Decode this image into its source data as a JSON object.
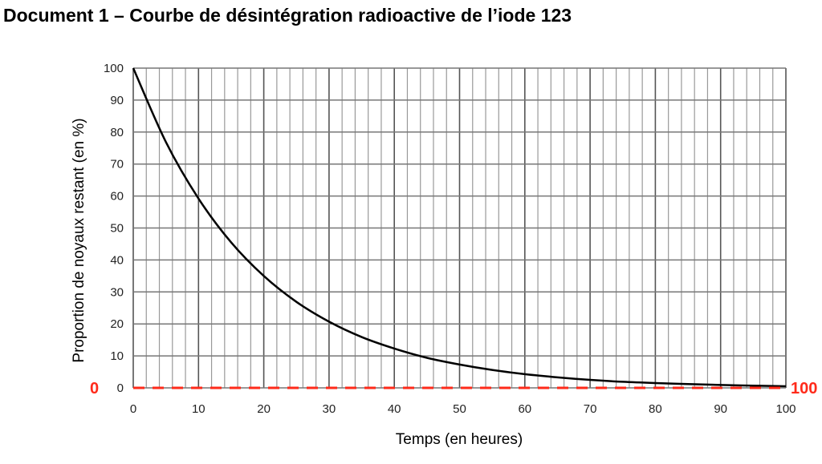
{
  "title": "Document 1 – Courbe de désintégration radioactive de l’iode 123",
  "chart_data": {
    "type": "line",
    "title": "Document 1 – Courbe de désintégration radioactive de l’iode 123",
    "xlabel": "Temps (en heures)",
    "ylabel": "Proportion de noyaux restant (en %)",
    "xlim": [
      0,
      100
    ],
    "ylim": [
      0,
      100
    ],
    "xticks": [
      0,
      10,
      20,
      30,
      40,
      50,
      60,
      70,
      80,
      90,
      100
    ],
    "yticks": [
      0,
      10,
      20,
      30,
      40,
      50,
      60,
      70,
      80,
      90,
      100
    ],
    "grid": true,
    "minor_x_grid_step": 2,
    "x": [
      0,
      5,
      10,
      15,
      20,
      25,
      30,
      35,
      40,
      45,
      50,
      55,
      60,
      65,
      70,
      75,
      80,
      85,
      90,
      95,
      100
    ],
    "y": [
      100,
      76.9,
      59.2,
      45.5,
      35.0,
      26.9,
      20.7,
      15.9,
      12.3,
      9.4,
      7.3,
      5.6,
      4.3,
      3.3,
      2.5,
      1.9,
      1.5,
      1.2,
      0.9,
      0.7,
      0.5
    ],
    "line_color": "#000000",
    "annotations": {
      "baseline_color": "#ff2a1a",
      "baseline_start_label": "0",
      "baseline_end_label": "100"
    }
  }
}
